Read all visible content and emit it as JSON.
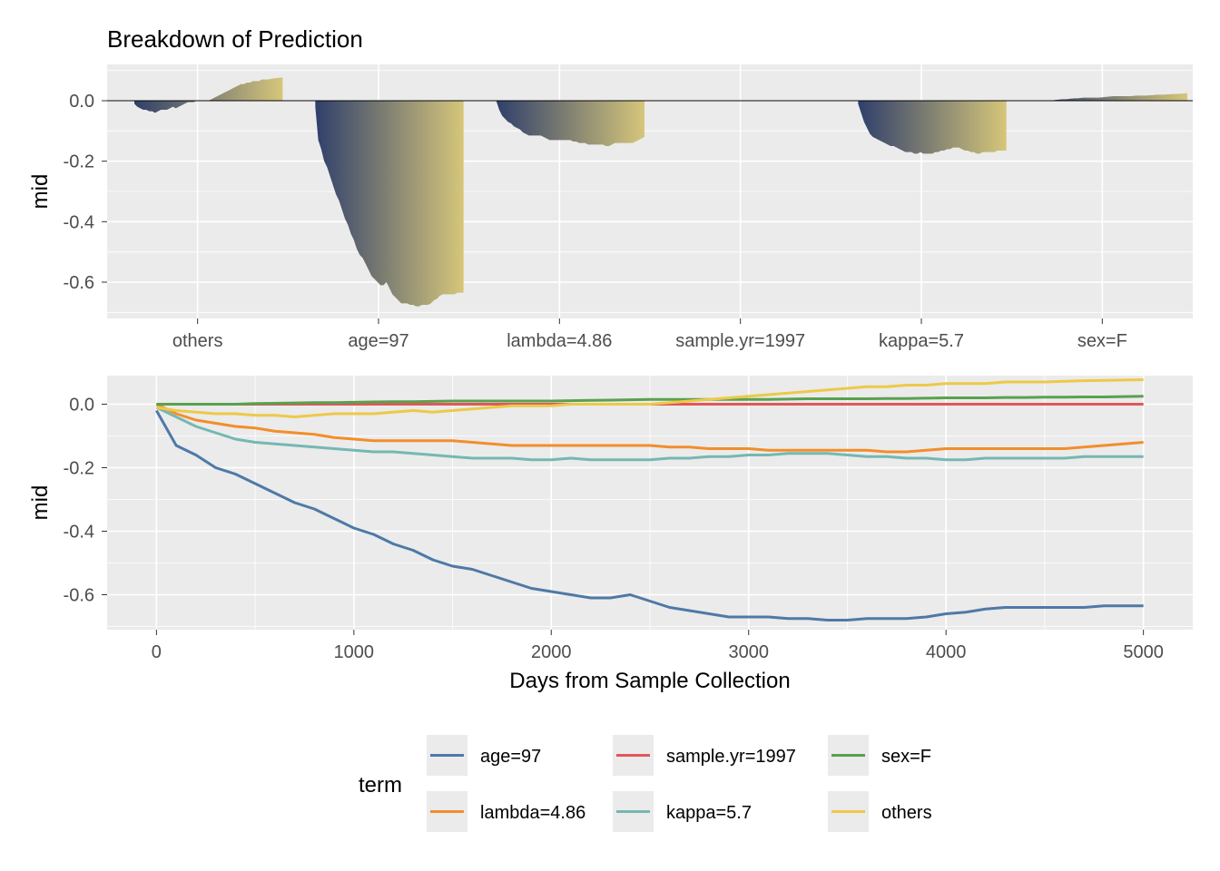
{
  "chart_data": [
    {
      "type": "area",
      "title": "Breakdown of Prediction",
      "xlabel": "",
      "ylabel": "mid",
      "ylim": [
        -0.72,
        0.12
      ],
      "yticks": [
        0.0,
        -0.2,
        -0.4,
        -0.6
      ],
      "ytick_labels": [
        "0.0",
        "-0.2",
        "-0.4",
        "-0.6"
      ],
      "baseline": 0.0,
      "fill_gradient": [
        "#2f3f6b",
        "#d6c67a"
      ],
      "description": "Each term's contribution curve over days 0-5000 drawn as a filled area within its category slot",
      "categories": [
        "others",
        "age=97",
        "lambda=4.86",
        "sample.yr=1997",
        "kappa=5.7",
        "sex=F"
      ],
      "series_ref": "same time series as the lower panel, one area per category"
    },
    {
      "type": "line",
      "title": "",
      "xlabel": "Days from Sample Collection",
      "ylabel": "mid",
      "xlim": [
        -250,
        5250
      ],
      "ylim": [
        -0.71,
        0.09
      ],
      "xticks": [
        0,
        1000,
        2000,
        3000,
        4000,
        5000
      ],
      "xtick_labels": [
        "0",
        "1000",
        "2000",
        "3000",
        "4000",
        "5000"
      ],
      "yticks": [
        0.0,
        -0.2,
        -0.4,
        -0.6
      ],
      "ytick_labels": [
        "0.0",
        "-0.2",
        "-0.4",
        "-0.6"
      ],
      "x": [
        0,
        100,
        200,
        300,
        400,
        500,
        600,
        700,
        800,
        900,
        1000,
        1100,
        1200,
        1300,
        1400,
        1500,
        1600,
        1700,
        1800,
        1900,
        2000,
        2100,
        2200,
        2300,
        2400,
        2500,
        2600,
        2700,
        2800,
        2900,
        3000,
        3100,
        3200,
        3300,
        3400,
        3500,
        3600,
        3700,
        3800,
        3900,
        4000,
        4100,
        4200,
        4300,
        4400,
        4500,
        4600,
        4700,
        4800,
        4900,
        5000
      ],
      "series": [
        {
          "name": "age=97",
          "color": "#4e79a7",
          "values": [
            -0.02,
            -0.13,
            -0.16,
            -0.2,
            -0.22,
            -0.25,
            -0.28,
            -0.31,
            -0.33,
            -0.36,
            -0.39,
            -0.41,
            -0.44,
            -0.46,
            -0.49,
            -0.51,
            -0.52,
            -0.54,
            -0.56,
            -0.58,
            -0.59,
            -0.6,
            -0.61,
            -0.61,
            -0.6,
            -0.62,
            -0.64,
            -0.65,
            -0.66,
            -0.67,
            -0.67,
            -0.67,
            -0.675,
            -0.675,
            -0.68,
            -0.68,
            -0.675,
            -0.675,
            -0.675,
            -0.67,
            -0.66,
            -0.655,
            -0.645,
            -0.64,
            -0.64,
            -0.64,
            -0.64,
            -0.64,
            -0.635,
            -0.635,
            -0.635
          ]
        },
        {
          "name": "lambda=4.86",
          "color": "#f28e2b",
          "values": [
            0.0,
            -0.03,
            -0.05,
            -0.06,
            -0.07,
            -0.075,
            -0.085,
            -0.09,
            -0.095,
            -0.105,
            -0.11,
            -0.115,
            -0.115,
            -0.115,
            -0.115,
            -0.115,
            -0.12,
            -0.125,
            -0.13,
            -0.13,
            -0.13,
            -0.13,
            -0.13,
            -0.13,
            -0.13,
            -0.13,
            -0.135,
            -0.135,
            -0.14,
            -0.14,
            -0.14,
            -0.145,
            -0.145,
            -0.145,
            -0.145,
            -0.145,
            -0.145,
            -0.15,
            -0.15,
            -0.145,
            -0.14,
            -0.14,
            -0.14,
            -0.14,
            -0.14,
            -0.14,
            -0.14,
            -0.135,
            -0.13,
            -0.125,
            -0.12
          ]
        },
        {
          "name": "sample.yr=1997",
          "color": "#e15759",
          "values": [
            0.0,
            0.0,
            0.0,
            0.0,
            0.0,
            0.0,
            0.0,
            0.0,
            0.0,
            0.0,
            0.0,
            0.0,
            0.0,
            0.0,
            0.0,
            0.0,
            0.0,
            0.0,
            0.0,
            0.0,
            0.0,
            0.0,
            0.0,
            0.0,
            0.0,
            0.0,
            0.0,
            0.0,
            0.0,
            0.0,
            0.0,
            0.0,
            0.0,
            0.0,
            0.0,
            0.0,
            0.0,
            0.0,
            0.0,
            0.0,
            0.0,
            0.0,
            0.0,
            0.0,
            0.0,
            0.0,
            0.0,
            0.0,
            0.0,
            0.0,
            0.0
          ]
        },
        {
          "name": "kappa=5.7",
          "color": "#76b7b2",
          "values": [
            -0.01,
            -0.04,
            -0.07,
            -0.09,
            -0.11,
            -0.12,
            -0.125,
            -0.13,
            -0.135,
            -0.14,
            -0.145,
            -0.15,
            -0.15,
            -0.155,
            -0.16,
            -0.165,
            -0.17,
            -0.17,
            -0.17,
            -0.175,
            -0.175,
            -0.17,
            -0.175,
            -0.175,
            -0.175,
            -0.175,
            -0.17,
            -0.17,
            -0.165,
            -0.165,
            -0.16,
            -0.16,
            -0.155,
            -0.155,
            -0.155,
            -0.16,
            -0.165,
            -0.165,
            -0.17,
            -0.17,
            -0.175,
            -0.175,
            -0.17,
            -0.17,
            -0.17,
            -0.17,
            -0.17,
            -0.165,
            -0.165,
            -0.165,
            -0.165
          ]
        },
        {
          "name": "sex=F",
          "color": "#59a14f",
          "values": [
            0.0,
            0.0,
            0.0,
            0.0,
            0.0,
            0.002,
            0.003,
            0.004,
            0.005,
            0.005,
            0.006,
            0.007,
            0.008,
            0.008,
            0.009,
            0.01,
            0.01,
            0.01,
            0.01,
            0.01,
            0.01,
            0.011,
            0.012,
            0.013,
            0.014,
            0.015,
            0.015,
            0.015,
            0.015,
            0.015,
            0.015,
            0.015,
            0.016,
            0.017,
            0.017,
            0.017,
            0.017,
            0.018,
            0.018,
            0.019,
            0.02,
            0.02,
            0.02,
            0.021,
            0.021,
            0.022,
            0.022,
            0.023,
            0.023,
            0.024,
            0.025
          ]
        },
        {
          "name": "others",
          "color": "#edc948",
          "values": [
            -0.01,
            -0.02,
            -0.025,
            -0.03,
            -0.03,
            -0.035,
            -0.035,
            -0.04,
            -0.035,
            -0.03,
            -0.03,
            -0.03,
            -0.025,
            -0.02,
            -0.025,
            -0.02,
            -0.015,
            -0.01,
            -0.005,
            -0.005,
            -0.005,
            0.0,
            0.0,
            0.0,
            0.0,
            0.0,
            0.005,
            0.01,
            0.015,
            0.02,
            0.025,
            0.03,
            0.035,
            0.04,
            0.045,
            0.05,
            0.055,
            0.055,
            0.06,
            0.06,
            0.065,
            0.065,
            0.065,
            0.07,
            0.07,
            0.07,
            0.072,
            0.074,
            0.075,
            0.076,
            0.077
          ]
        }
      ],
      "legend": {
        "title": "term",
        "position": "bottom"
      }
    }
  ]
}
